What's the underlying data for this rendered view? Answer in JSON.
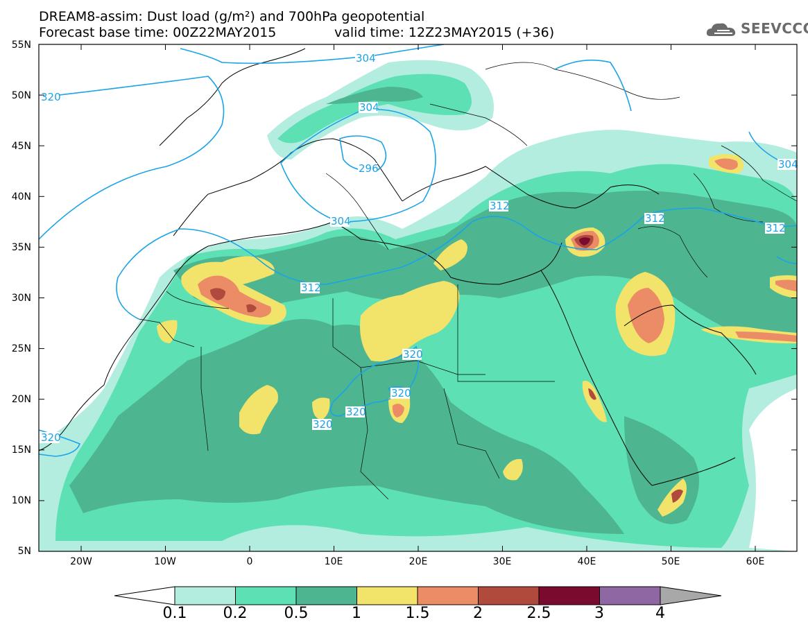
{
  "header": {
    "title_line1": "DREAM8-assim: Dust load (g/m²) and 700hPa geopotential",
    "title_line2_left": "Forecast base time: 00Z22MAY2015",
    "title_line2_right": "valid time: 12Z23MAY2015 (+36)"
  },
  "logo": {
    "text": "SEEVCCC",
    "icon": "cloud-logo-icon"
  },
  "map": {
    "lat_labels": [
      "55N",
      "50N",
      "45N",
      "40N",
      "35N",
      "30N",
      "25N",
      "20N",
      "15N",
      "10N",
      "5N"
    ],
    "lon_labels": [
      "20W",
      "10W",
      "0",
      "10E",
      "20E",
      "30E",
      "40E",
      "50E",
      "60E"
    ],
    "contour_labels": [
      "320",
      "304",
      "304",
      "296",
      "304",
      "312",
      "312",
      "312",
      "312",
      "320",
      "320",
      "320",
      "320",
      "320",
      "304"
    ]
  },
  "colorbar": {
    "labels": [
      "0.1",
      "0.2",
      "0.5",
      "1",
      "1.5",
      "2",
      "2.5",
      "3",
      "4"
    ],
    "colors": [
      "#b3ede0",
      "#5ee0b5",
      "#4db590",
      "#f2e36a",
      "#eb8c66",
      "#b04a3d",
      "#7a0a2e",
      "#8f67a3"
    ],
    "under_color": "#ffffff",
    "over_color": "#a8a8a8"
  }
}
